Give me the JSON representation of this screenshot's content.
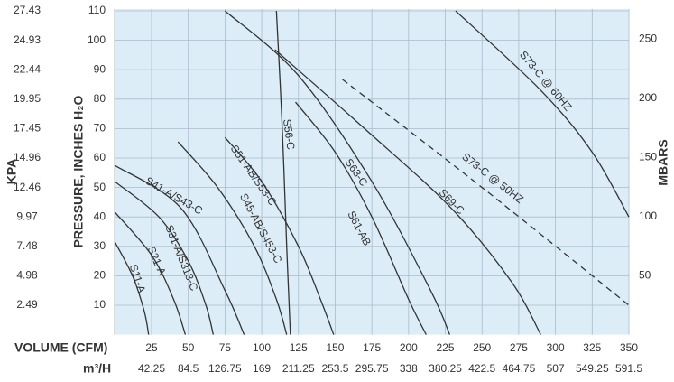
{
  "chart_data": {
    "type": "line",
    "x_label": "VOLUME (CFM)",
    "x2_label": "m³/H",
    "y_label": "PRESSURE, INCHES H₂O",
    "y2_label": "MBARS",
    "y3_label": "KPA",
    "xlim": [
      0,
      350
    ],
    "xticks": [
      25,
      50,
      75,
      100,
      125,
      150,
      175,
      200,
      225,
      250,
      275,
      300,
      325,
      350
    ],
    "x2lim": [
      0,
      591.5
    ],
    "x2ticks": [
      42.25,
      84.5,
      126.75,
      169,
      211.25,
      253.5,
      295.75,
      338,
      380.25,
      422.5,
      464.75,
      507,
      549.25,
      591.5
    ],
    "ylim": [
      0,
      110
    ],
    "yticks": [
      10,
      20,
      30,
      40,
      50,
      60,
      70,
      80,
      90,
      100,
      110
    ],
    "y2lim": [
      0,
      274
    ],
    "y2ticks": [
      50,
      100,
      150,
      200,
      250
    ],
    "y3lim": [
      0,
      27.43
    ],
    "y3ticks": [
      2.49,
      4.98,
      7.48,
      9.97,
      12.46,
      14.96,
      17.45,
      19.95,
      22.44,
      24.93,
      27.43
    ],
    "grid": true,
    "line_color": "#333333",
    "background": "#dcedf8",
    "series": [
      {
        "name": "S11-A",
        "x": [
          0,
          12,
          20,
          23
        ],
        "values": [
          31.5,
          20,
          8,
          0
        ]
      },
      {
        "name": "S21-A",
        "x": [
          0,
          25,
          40,
          48
        ],
        "values": [
          41.6,
          27,
          12,
          0
        ]
      },
      {
        "name": "S31-A/S313-C",
        "x": [
          0,
          30,
          50,
          62,
          67
        ],
        "values": [
          52,
          40,
          25,
          10,
          0
        ]
      },
      {
        "name": "S41-A/S43-C",
        "x": [
          0,
          45,
          75,
          88
        ],
        "values": [
          57.5,
          43,
          15,
          0
        ]
      },
      {
        "name": "S45-AB/S453-C",
        "x": [
          43,
          70,
          95,
          110,
          117
        ],
        "values": [
          65.5,
          50,
          30,
          12,
          0
        ]
      },
      {
        "name": "S51-AB/S53-C",
        "x": [
          75,
          100,
          125,
          140,
          149
        ],
        "values": [
          67,
          52,
          30,
          12,
          0
        ]
      },
      {
        "name": "S56-C",
        "x": [
          110,
          114,
          117,
          119.5
        ],
        "values": [
          110,
          70,
          30,
          0
        ]
      },
      {
        "name": "S61-AB",
        "x": [
          123,
          150,
          175,
          200,
          212
        ],
        "values": [
          79,
          62,
          40,
          12,
          0
        ]
      },
      {
        "name": "S63-C",
        "x": [
          75,
          125,
          175,
          215,
          228
        ],
        "values": [
          110,
          88,
          52,
          15,
          0
        ]
      },
      {
        "name": "S69-C",
        "x": [
          109,
          170,
          229,
          270,
          290
        ],
        "values": [
          96.8,
          70,
          43,
          18,
          0
        ]
      },
      {
        "name": "S73-C @ 50HZ",
        "x": [
          155,
          250,
          350
        ],
        "values": [
          86.7,
          50,
          10
        ],
        "dashed": true
      },
      {
        "name": "S73-C @ 60HZ",
        "x": [
          232,
          290,
          325,
          350
        ],
        "values": [
          110,
          83,
          62,
          40
        ]
      }
    ]
  }
}
